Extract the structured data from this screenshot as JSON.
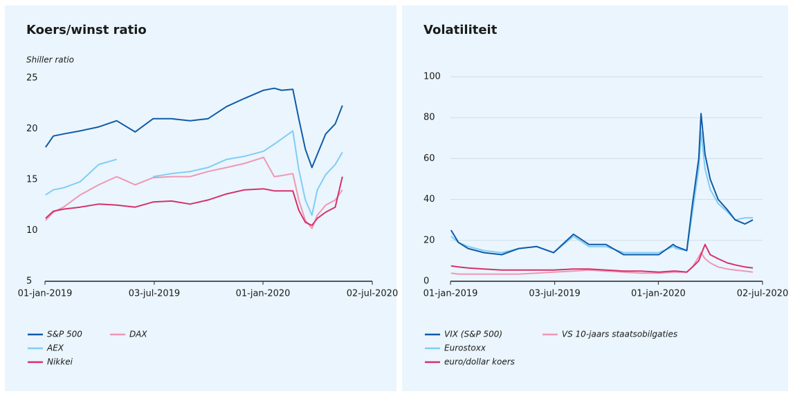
{
  "chart_data": [
    {
      "type": "line",
      "title": "Koers/winst ratio",
      "y_label": "Shiller ratio",
      "x": [
        "2019-01-02",
        "2019-01-15",
        "2019-02-01",
        "2019-03-01",
        "2019-04-01",
        "2019-05-01",
        "2019-06-01",
        "2019-07-01",
        "2019-08-01",
        "2019-09-01",
        "2019-10-01",
        "2019-11-01",
        "2019-12-01",
        "2020-01-02",
        "2020-01-20",
        "2020-02-01",
        "2020-02-20",
        "2020-03-01",
        "2020-03-12",
        "2020-03-23",
        "2020-04-01",
        "2020-04-15",
        "2020-05-01",
        "2020-05-13"
      ],
      "series": [
        {
          "name": "S&P 500",
          "color": "#0f5aa6",
          "values": [
            18.2,
            19.3,
            19.5,
            19.8,
            20.2,
            20.8,
            19.7,
            21,
            21,
            20.8,
            21,
            22.2,
            23,
            23.8,
            24,
            23.8,
            23.9,
            21,
            18,
            16.2,
            17.5,
            19.5,
            20.5,
            22.3
          ]
        },
        {
          "name": "AEX",
          "color": "#80ccf5",
          "values": [
            13.5,
            14,
            14.2,
            14.8,
            16.5,
            17,
            null,
            15.3,
            15.6,
            15.8,
            16.2,
            17,
            17.3,
            17.8,
            18.5,
            19,
            19.8,
            16,
            13,
            11.5,
            14,
            15.5,
            16.5,
            17.7
          ]
        },
        {
          "name": "Nikkei",
          "color": "#d6306b",
          "values": [
            11.2,
            11.9,
            12.1,
            12.3,
            12.6,
            12.5,
            12.3,
            12.8,
            12.9,
            12.6,
            13,
            13.6,
            14,
            14.1,
            13.9,
            13.9,
            13.9,
            12,
            10.8,
            10.5,
            11.2,
            11.8,
            12.3,
            15.3
          ]
        },
        {
          "name": "DAX",
          "color": "#f097b3",
          "values": [
            11,
            11.8,
            12.3,
            13.5,
            14.5,
            15.3,
            14.5,
            15.2,
            15.3,
            15.3,
            15.8,
            16.2,
            16.6,
            17.2,
            15.3,
            15.4,
            15.6,
            13,
            11,
            10.2,
            11.5,
            12.5,
            13,
            14
          ]
        }
      ],
      "xlim": [
        "2019-01-01",
        "2020-07-02"
      ],
      "xticks": [
        {
          "value": "2019-01-01",
          "label": "01-jan-2019"
        },
        {
          "value": "2019-07-03",
          "label": "03-jul-2019"
        },
        {
          "value": "2020-01-01",
          "label": "01-jan-2020"
        },
        {
          "value": "2020-07-02",
          "label": "02-jul-2020"
        }
      ],
      "ylim": [
        5,
        25
      ],
      "yticks": [
        5,
        10,
        15,
        20,
        25
      ],
      "grid": false
    },
    {
      "type": "line",
      "title": "Volatiliteit",
      "x": [
        "2019-01-02",
        "2019-01-15",
        "2019-02-01",
        "2019-03-01",
        "2019-04-01",
        "2019-05-01",
        "2019-06-01",
        "2019-07-01",
        "2019-08-05",
        "2019-09-01",
        "2019-10-01",
        "2019-11-01",
        "2019-12-01",
        "2020-01-02",
        "2020-01-27",
        "2020-02-01",
        "2020-02-20",
        "2020-03-01",
        "2020-03-12",
        "2020-03-16",
        "2020-03-23",
        "2020-04-01",
        "2020-04-15",
        "2020-05-01",
        "2020-05-15",
        "2020-06-01",
        "2020-06-15"
      ],
      "series": [
        {
          "name": "VIX (S&P 500)",
          "color": "#0f5aa6",
          "values": [
            25,
            19,
            16,
            14,
            13,
            16,
            17,
            14,
            23,
            18,
            18,
            13,
            13,
            13,
            18,
            17,
            15,
            38,
            60,
            82,
            62,
            50,
            40,
            35,
            30,
            28,
            30
          ]
        },
        {
          "name": "Eurostoxx",
          "color": "#80ccf5",
          "values": [
            22,
            19,
            17,
            15,
            14,
            16,
            17,
            14,
            22,
            17,
            17,
            14,
            14,
            14,
            17,
            16,
            15,
            34,
            55,
            73,
            55,
            45,
            38,
            34,
            30,
            31,
            31
          ]
        },
        {
          "name": "euro/dollar koers",
          "color": "#d6306b",
          "values": [
            7.5,
            7,
            6.5,
            6,
            5.5,
            5.5,
            5.5,
            5.5,
            6,
            6,
            5.5,
            5,
            5,
            4.5,
            5,
            5,
            4.5,
            7,
            10,
            13,
            18,
            13,
            11,
            9,
            8,
            7,
            6.5
          ]
        },
        {
          "name": "VS 10-jaars staatsobilgaties",
          "color": "#f097b3",
          "values": [
            4,
            3.5,
            3.5,
            3.5,
            3.5,
            3.5,
            4,
            4.5,
            5,
            5.5,
            5,
            4.5,
            4,
            4,
            4.5,
            4.5,
            4.5,
            7,
            12,
            14,
            11,
            9,
            7,
            6,
            5.5,
            5,
            4.5
          ]
        }
      ],
      "xlim": [
        "2019-01-01",
        "2020-07-02"
      ],
      "xticks": [
        {
          "value": "2019-01-01",
          "label": "01-jan-2019"
        },
        {
          "value": "2019-07-03",
          "label": "03-jul-2019"
        },
        {
          "value": "2020-01-01",
          "label": "01-jan-2020"
        },
        {
          "value": "2020-07-02",
          "label": "02-jul-2020"
        }
      ],
      "ylim": [
        0,
        100
      ],
      "yticks": [
        0,
        20,
        40,
        60,
        80,
        100
      ],
      "grid": true
    }
  ]
}
